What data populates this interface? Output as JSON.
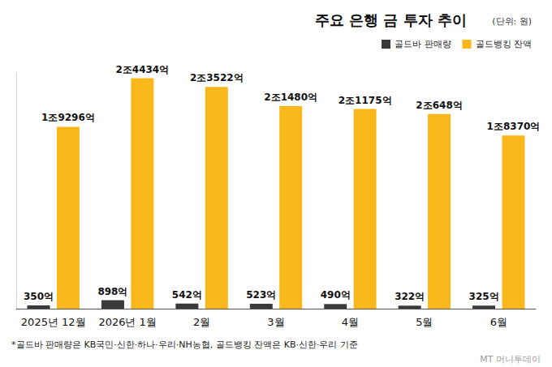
{
  "chart_data": {
    "type": "bar",
    "title": "주요 은행 금 투자 추이",
    "subtitle": "(단위: 원)",
    "categories": [
      "2025년 12월",
      "2026년 1월",
      "2월",
      "3월",
      "4월",
      "5월",
      "6월"
    ],
    "series": [
      {
        "name": "골드바 판매량",
        "color": "#3b3b3b",
        "values": [
          350,
          898,
          542,
          523,
          490,
          322,
          325
        ],
        "value_labels": [
          "350억",
          "898억",
          "542억",
          "523억",
          "490억",
          "322억",
          "325억"
        ]
      },
      {
        "name": "골드뱅킹 잔액",
        "color": "#f8b81a",
        "values": [
          19296,
          24434,
          23522,
          21480,
          21175,
          20648,
          18370
        ],
        "value_labels": [
          "1조9296억",
          "2조4434억",
          "2조3522억",
          "2조1480억",
          "2조1175억",
          "2조648억",
          "1조8370억"
        ]
      }
    ],
    "ylim": [
      0,
      25000
    ],
    "tick_labels": "x",
    "grid": false,
    "legend": "top-right",
    "data_labels": true,
    "annotations": [
      "*골드바 판매량은 KB국민·신한·하나·우리·NH농협, 골드뱅킹 잔액은 KB·신한·우리 기준",
      "MT 머니투데이"
    ]
  }
}
